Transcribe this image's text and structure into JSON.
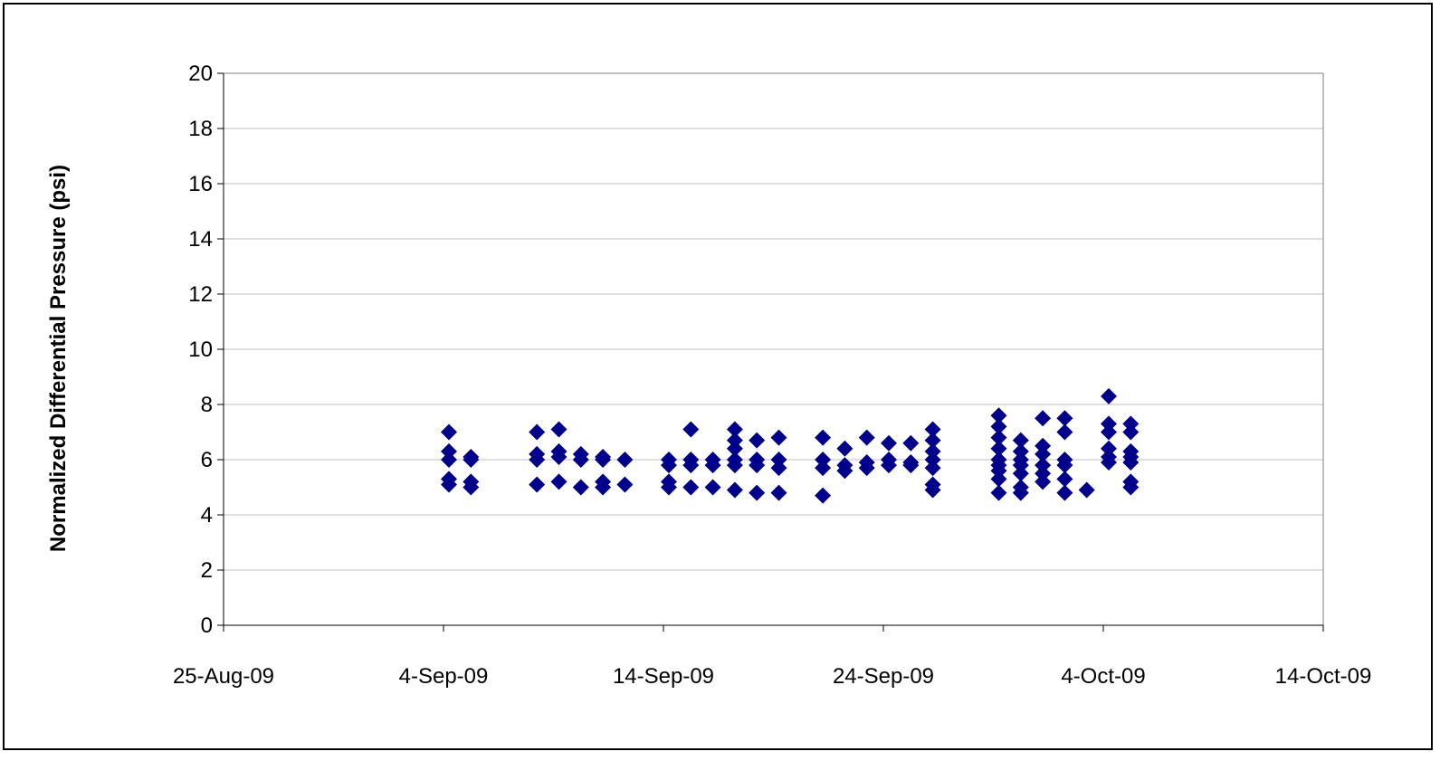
{
  "chart_data": {
    "type": "scatter",
    "title": "",
    "xlabel": "",
    "ylabel": "Normalized Differential Pressure (psi)",
    "xlim": [
      "2009-08-25",
      "2009-10-14"
    ],
    "ylim": [
      0,
      20
    ],
    "x_ticks": [
      "25-Aug-09",
      "4-Sep-09",
      "14-Sep-09",
      "24-Sep-09",
      "4-Oct-09",
      "14-Oct-09"
    ],
    "y_ticks": [
      "0",
      "2",
      "4",
      "6",
      "8",
      "10",
      "12",
      "14",
      "16",
      "18",
      "20"
    ],
    "grid": true,
    "legend": "none",
    "marker": "diamond",
    "series": [
      {
        "color": "#00008B",
        "points": [
          [
            "2009-09-04",
            7.0
          ],
          [
            "2009-09-04",
            6.3
          ],
          [
            "2009-09-04",
            6.0
          ],
          [
            "2009-09-04",
            5.3
          ],
          [
            "2009-09-04",
            5.1
          ],
          [
            "2009-09-05",
            6.1
          ],
          [
            "2009-09-05",
            6.0
          ],
          [
            "2009-09-05",
            5.2
          ],
          [
            "2009-09-05",
            5.0
          ],
          [
            "2009-09-08",
            7.0
          ],
          [
            "2009-09-08",
            6.2
          ],
          [
            "2009-09-08",
            6.0
          ],
          [
            "2009-09-08",
            5.1
          ],
          [
            "2009-09-09",
            7.1
          ],
          [
            "2009-09-09",
            6.3
          ],
          [
            "2009-09-09",
            6.1
          ],
          [
            "2009-09-09",
            5.2
          ],
          [
            "2009-09-10",
            6.2
          ],
          [
            "2009-09-10",
            6.0
          ],
          [
            "2009-09-10",
            5.0
          ],
          [
            "2009-09-11",
            6.1
          ],
          [
            "2009-09-11",
            6.0
          ],
          [
            "2009-09-11",
            5.2
          ],
          [
            "2009-09-11",
            5.0
          ],
          [
            "2009-09-12",
            6.0
          ],
          [
            "2009-09-12",
            5.1
          ],
          [
            "2009-09-14",
            6.0
          ],
          [
            "2009-09-14",
            5.8
          ],
          [
            "2009-09-14",
            5.2
          ],
          [
            "2009-09-14",
            5.0
          ],
          [
            "2009-09-15",
            7.1
          ],
          [
            "2009-09-15",
            6.0
          ],
          [
            "2009-09-15",
            5.8
          ],
          [
            "2009-09-15",
            5.0
          ],
          [
            "2009-09-16",
            6.0
          ],
          [
            "2009-09-16",
            5.8
          ],
          [
            "2009-09-16",
            5.0
          ],
          [
            "2009-09-17",
            7.1
          ],
          [
            "2009-09-17",
            6.7
          ],
          [
            "2009-09-17",
            6.4
          ],
          [
            "2009-09-17",
            6.0
          ],
          [
            "2009-09-17",
            5.8
          ],
          [
            "2009-09-17",
            4.9
          ],
          [
            "2009-09-18",
            6.7
          ],
          [
            "2009-09-18",
            6.0
          ],
          [
            "2009-09-18",
            5.8
          ],
          [
            "2009-09-18",
            4.8
          ],
          [
            "2009-09-19",
            6.8
          ],
          [
            "2009-09-19",
            6.0
          ],
          [
            "2009-09-19",
            5.7
          ],
          [
            "2009-09-19",
            4.8
          ],
          [
            "2009-09-21",
            6.8
          ],
          [
            "2009-09-21",
            6.0
          ],
          [
            "2009-09-21",
            5.7
          ],
          [
            "2009-09-21",
            4.7
          ],
          [
            "2009-09-22",
            6.4
          ],
          [
            "2009-09-22",
            5.8
          ],
          [
            "2009-09-22",
            5.6
          ],
          [
            "2009-09-23",
            6.8
          ],
          [
            "2009-09-23",
            5.9
          ],
          [
            "2009-09-23",
            5.7
          ],
          [
            "2009-09-24",
            6.6
          ],
          [
            "2009-09-24",
            6.0
          ],
          [
            "2009-09-24",
            5.8
          ],
          [
            "2009-09-25",
            6.6
          ],
          [
            "2009-09-25",
            5.9
          ],
          [
            "2009-09-25",
            5.8
          ],
          [
            "2009-09-26",
            7.1
          ],
          [
            "2009-09-26",
            6.7
          ],
          [
            "2009-09-26",
            6.3
          ],
          [
            "2009-09-26",
            6.0
          ],
          [
            "2009-09-26",
            5.7
          ],
          [
            "2009-09-26",
            5.1
          ],
          [
            "2009-09-26",
            4.9
          ],
          [
            "2009-09-29",
            7.6
          ],
          [
            "2009-09-29",
            7.2
          ],
          [
            "2009-09-29",
            6.8
          ],
          [
            "2009-09-29",
            6.4
          ],
          [
            "2009-09-29",
            6.0
          ],
          [
            "2009-09-29",
            5.8
          ],
          [
            "2009-09-29",
            5.6
          ],
          [
            "2009-09-29",
            5.3
          ],
          [
            "2009-09-29",
            4.8
          ],
          [
            "2009-09-30",
            6.7
          ],
          [
            "2009-09-30",
            6.3
          ],
          [
            "2009-09-30",
            6.0
          ],
          [
            "2009-09-30",
            5.8
          ],
          [
            "2009-09-30",
            5.5
          ],
          [
            "2009-09-30",
            5.0
          ],
          [
            "2009-09-30",
            4.8
          ],
          [
            "2009-10-01",
            7.5
          ],
          [
            "2009-10-01",
            6.5
          ],
          [
            "2009-10-01",
            6.2
          ],
          [
            "2009-10-01",
            5.8
          ],
          [
            "2009-10-01",
            5.5
          ],
          [
            "2009-10-01",
            5.2
          ],
          [
            "2009-10-02",
            7.5
          ],
          [
            "2009-10-02",
            7.0
          ],
          [
            "2009-10-02",
            6.0
          ],
          [
            "2009-10-02",
            5.8
          ],
          [
            "2009-10-02",
            5.3
          ],
          [
            "2009-10-02",
            4.8
          ],
          [
            "2009-10-03",
            4.9
          ],
          [
            "2009-10-04",
            8.3
          ],
          [
            "2009-10-04",
            7.3
          ],
          [
            "2009-10-04",
            7.0
          ],
          [
            "2009-10-04",
            6.4
          ],
          [
            "2009-10-04",
            6.1
          ],
          [
            "2009-10-04",
            5.9
          ],
          [
            "2009-10-05",
            7.3
          ],
          [
            "2009-10-05",
            7.0
          ],
          [
            "2009-10-05",
            6.3
          ],
          [
            "2009-10-05",
            6.1
          ],
          [
            "2009-10-05",
            5.9
          ],
          [
            "2009-10-05",
            5.2
          ],
          [
            "2009-10-05",
            5.0
          ]
        ]
      }
    ]
  }
}
